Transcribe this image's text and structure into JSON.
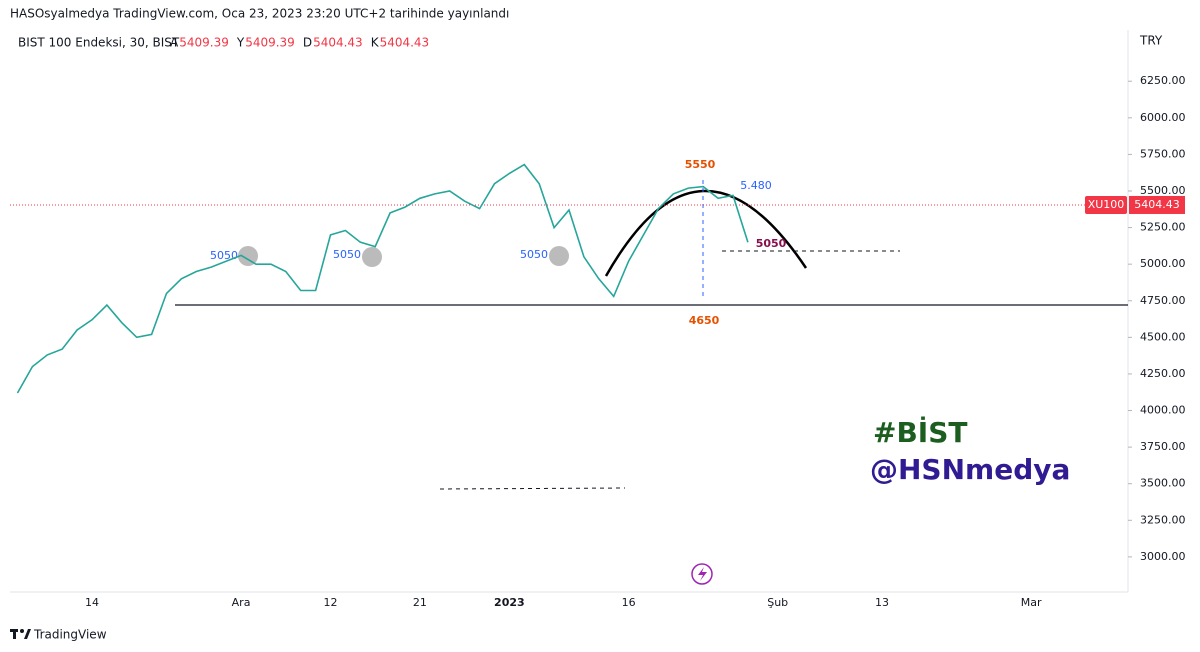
{
  "header": {
    "published": "HASOsyalmedya TradingView.com, Oca 23, 2023 23:20 UTC+2 tarihinde yayınlandı",
    "symbol": "BIST 100 Endeksi, 30, BIST",
    "ohlc": [
      {
        "key": "A",
        "value": 5409.39
      },
      {
        "key": "Y",
        "value": 5409.39
      },
      {
        "key": "D",
        "value": 5404.43
      },
      {
        "key": "K",
        "value": 5404.43
      }
    ]
  },
  "footer": {
    "brand": "TradingView"
  },
  "chart_data": {
    "type": "line",
    "currency": "TRY",
    "categories": [
      null,
      null,
      null,
      null,
      null,
      "14",
      null,
      null,
      null,
      null,
      null,
      null,
      null,
      null,
      null,
      "Ara",
      null,
      null,
      null,
      null,
      null,
      "12",
      null,
      null,
      null,
      null,
      null,
      "21",
      null,
      null,
      null,
      null,
      null,
      "2023",
      null,
      null,
      null,
      null,
      null,
      null,
      null,
      "16",
      null,
      null,
      null,
      null,
      null,
      null,
      null,
      null,
      null,
      "Şub",
      null,
      null,
      null,
      null,
      null,
      null,
      "13",
      null,
      null,
      null,
      null,
      null,
      null,
      null,
      null,
      null,
      "Mar",
      null,
      null,
      null,
      null,
      null,
      null
    ],
    "series": [
      {
        "name": "XU100",
        "color": "#26a69a",
        "values": [
          4120,
          4300,
          4380,
          4420,
          4550,
          4620,
          4720,
          4600,
          4500,
          4520,
          4800,
          4900,
          4950,
          4980,
          5020,
          5060,
          5000,
          5000,
          4950,
          4820,
          4820,
          5200,
          5230,
          5150,
          5120,
          5350,
          5390,
          5450,
          5480,
          5500,
          5430,
          5380,
          5550,
          5620,
          5680,
          5550,
          5250,
          5370,
          5050,
          4900,
          4780,
          5020,
          5200,
          5380,
          5480,
          5520,
          5530,
          5450,
          5470,
          5150,
          null,
          null,
          null,
          null,
          null,
          null,
          null,
          null,
          null,
          null,
          null,
          null,
          null,
          null,
          null,
          null,
          null,
          null,
          null,
          null,
          null,
          null,
          null,
          null,
          null
        ]
      }
    ],
    "last_price": {
      "value": 5404.43,
      "label": "5404.43"
    },
    "ylim": [
      2760,
      6600
    ],
    "yticks": [
      {
        "value": 3000,
        "label": "3000.00"
      },
      {
        "value": 3250,
        "label": "3250.00"
      },
      {
        "value": 3500,
        "label": "3500.00"
      },
      {
        "value": 3750,
        "label": "3750.00"
      },
      {
        "value": 4000,
        "label": "4000.00"
      },
      {
        "value": 4250,
        "label": "4250.00"
      },
      {
        "value": 4500,
        "label": "4500.00"
      },
      {
        "value": 4750,
        "label": "4750.00"
      },
      {
        "value": 5000,
        "label": "5000.00"
      },
      {
        "value": 5250,
        "label": "5250.00"
      },
      {
        "value": 5500,
        "label": "5500.00"
      },
      {
        "value": 5750,
        "label": "5750.00"
      },
      {
        "value": 6000,
        "label": "6000.00"
      },
      {
        "value": 6250,
        "label": "6250.00"
      }
    ],
    "annotations": [
      "5550",
      "5.480",
      "5050",
      "4650",
      "5050",
      "5050",
      "5050",
      "#BİST",
      "@HSNmedya"
    ]
  }
}
